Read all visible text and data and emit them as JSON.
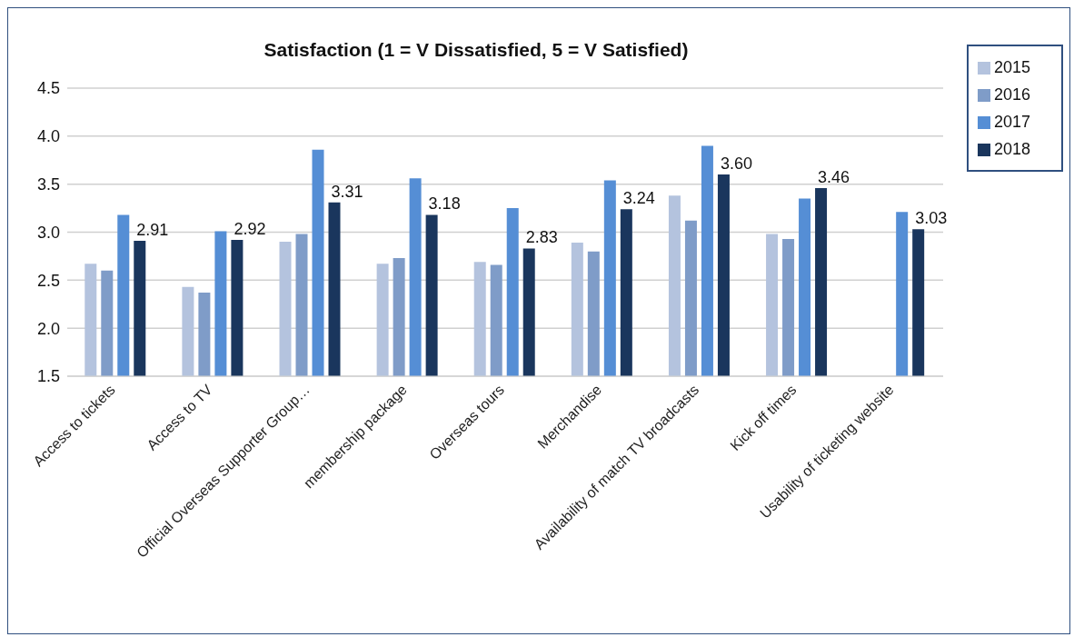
{
  "chart_data": {
    "type": "bar",
    "title": "Satisfaction (1 = V Dissatisfied, 5 = V Satisfied)",
    "categories": [
      "Access to tickets",
      "Access to TV",
      "Official Overseas Supporter Group…",
      "membership package",
      "Overseas tours",
      "Merchandise",
      "Availability of match TV broadcasts",
      "Kick off times",
      "Usability of ticketing website"
    ],
    "series": [
      {
        "name": "2015",
        "color": "#b4c3de",
        "values": [
          2.67,
          2.43,
          2.9,
          2.67,
          2.69,
          2.89,
          3.38,
          2.98,
          null
        ]
      },
      {
        "name": "2016",
        "color": "#7f9cc8",
        "values": [
          2.6,
          2.37,
          2.98,
          2.73,
          2.66,
          2.8,
          3.12,
          2.93,
          null
        ]
      },
      {
        "name": "2017",
        "color": "#558ed5",
        "values": [
          3.18,
          3.01,
          3.86,
          3.56,
          3.25,
          3.54,
          3.9,
          3.35,
          3.21
        ]
      },
      {
        "name": "2018",
        "color": "#1a365d",
        "values": [
          2.91,
          2.92,
          3.31,
          3.18,
          2.83,
          3.24,
          3.6,
          3.46,
          3.03
        ],
        "value_labels": [
          "2.91",
          "2.92",
          "3.31",
          "3.18",
          "2.83",
          "3.24",
          "3.60",
          "3.46",
          "3.03"
        ]
      }
    ],
    "ylim": [
      1.5,
      4.5
    ],
    "yticks": [
      1.5,
      {
        "value": 2,
        "label": "2.0"
      },
      2.5,
      {
        "value": 3,
        "label": "3.0"
      },
      3.5,
      {
        "value": 4,
        "label": "4.0"
      },
      4.5
    ],
    "grid": "y",
    "legend": "top right"
  }
}
